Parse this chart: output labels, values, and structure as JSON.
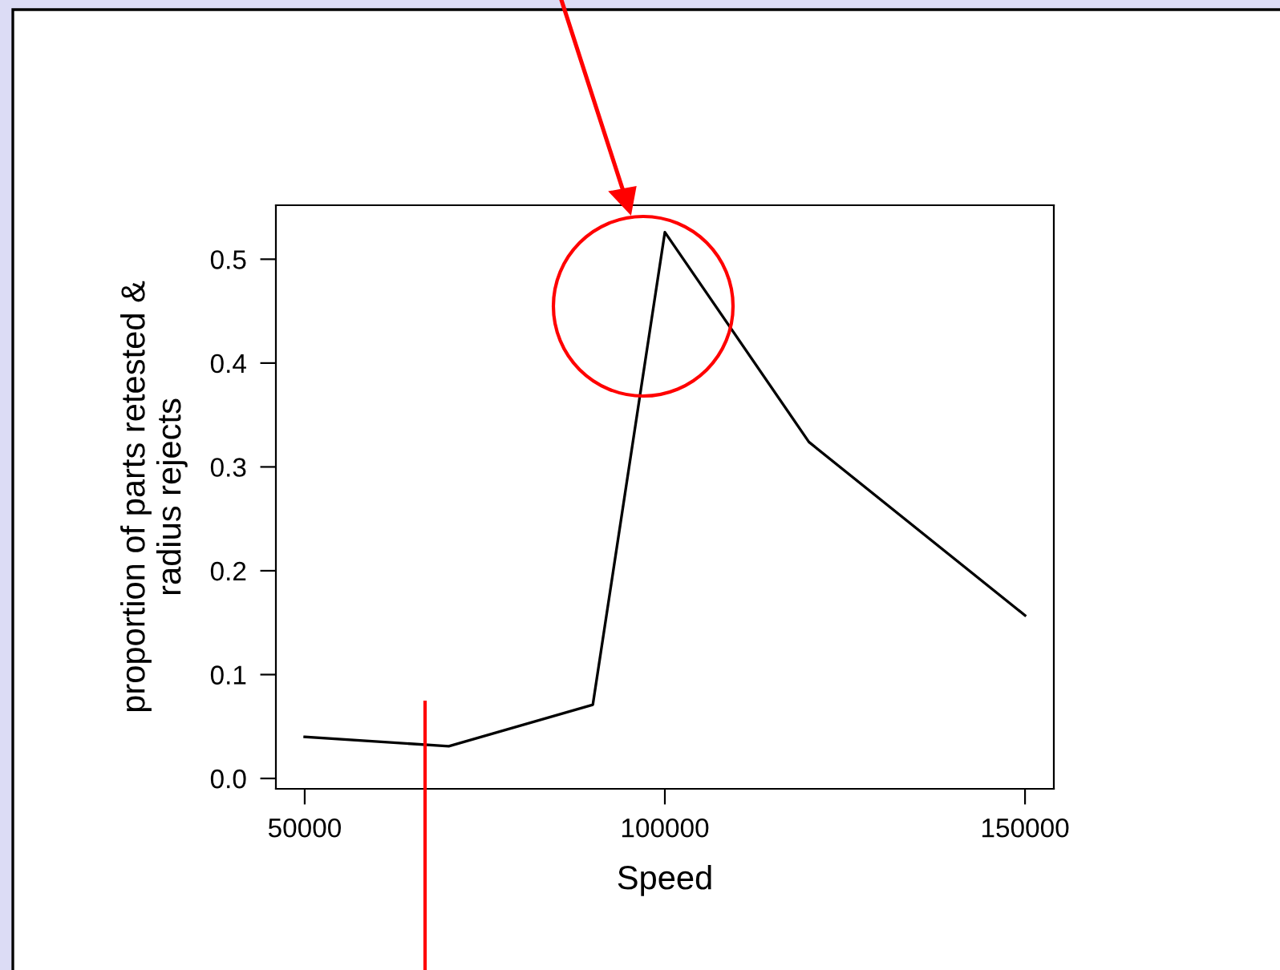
{
  "chart_data": {
    "type": "line",
    "xlabel": "Speed",
    "ylabel": "proportion of parts retested &\nradius rejects",
    "x": [
      50000,
      70000,
      90000,
      100000,
      120000,
      150000
    ],
    "series": [
      {
        "color": "#000000",
        "values": [
          0.04,
          0.031,
          0.071,
          0.526,
          0.324,
          0.157
        ]
      }
    ],
    "xlim": [
      46000,
      154000
    ],
    "xticks": [
      50000,
      100000,
      150000
    ],
    "ylim": [
      -0.01,
      0.552
    ],
    "yticks": [
      {
        "value": 0,
        "label": "0.0"
      },
      0.1,
      0.2,
      0.3,
      0.4,
      0.5
    ],
    "grid": false,
    "legend": false
  }
}
